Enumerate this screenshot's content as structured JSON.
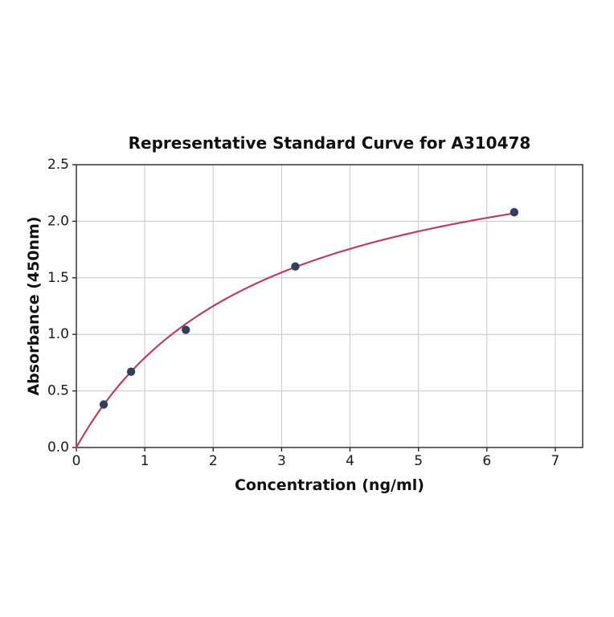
{
  "chart_data": {
    "type": "scatter",
    "title": "Representative Standard Curve for A310478",
    "xlabel": "Concentration (ng/ml)",
    "ylabel": "Absorbance (450nm)",
    "xlim": [
      0,
      7.4
    ],
    "ylim": [
      0,
      2.5
    ],
    "xticks": [
      0,
      1,
      2,
      3,
      4,
      5,
      6,
      7
    ],
    "xtick_labels": [
      "0",
      "1",
      "2",
      "3",
      "4",
      "5",
      "6",
      "7"
    ],
    "yticks": [
      0.0,
      0.5,
      1.0,
      1.5,
      2.0,
      2.5
    ],
    "ytick_labels": [
      "0.0",
      "0.5",
      "1.0",
      "1.5",
      "2.0",
      "2.5"
    ],
    "grid": true,
    "legend": "none",
    "points": [
      {
        "x": 0.4,
        "y": 0.38
      },
      {
        "x": 0.8,
        "y": 0.67
      },
      {
        "x": 1.6,
        "y": 1.04
      },
      {
        "x": 3.2,
        "y": 1.6
      },
      {
        "x": 6.4,
        "y": 2.08
      }
    ],
    "fit_curve": {
      "model": "y = a*x/(b+x)",
      "a": 2.95,
      "b": 2.72,
      "x_range": [
        0,
        6.4
      ]
    },
    "colors": {
      "curve": "#bc3f63",
      "points": "#2f3f5c",
      "grid": "#c6c6c6",
      "spine": "#262626",
      "tick_text": "#1a1a1a",
      "background": "#ffffff"
    }
  }
}
